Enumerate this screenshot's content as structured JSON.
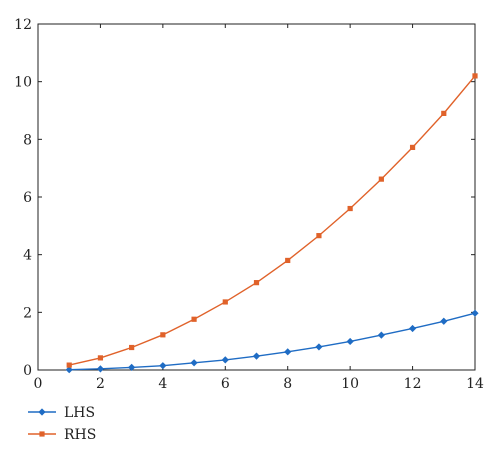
{
  "chart_data": {
    "type": "line",
    "title": "",
    "xlabel": "",
    "ylabel": "",
    "xlim": [
      0,
      14
    ],
    "ylim": [
      0,
      12
    ],
    "xticks": [
      "0",
      "2",
      "4",
      "6",
      "8",
      "10",
      "12",
      "14"
    ],
    "yticks": [
      "0",
      "2",
      "4",
      "6",
      "8",
      "10",
      "12"
    ],
    "grid": false,
    "legend_position": "bottom-left",
    "series": [
      {
        "name": "LHS",
        "color": "#1f6cc4",
        "marker": "diamond",
        "x": [
          1,
          2,
          3,
          4,
          5,
          6,
          7,
          8,
          9,
          10,
          11,
          12,
          13,
          14
        ],
        "y": [
          0.01,
          0.04,
          0.09,
          0.15,
          0.25,
          0.35,
          0.48,
          0.63,
          0.8,
          0.99,
          1.21,
          1.44,
          1.69,
          1.97
        ]
      },
      {
        "name": "RHS",
        "color": "#e0622a",
        "marker": "square",
        "x": [
          1,
          2,
          3,
          4,
          5,
          6,
          7,
          8,
          9,
          10,
          11,
          12,
          13,
          14
        ],
        "y": [
          0.17,
          0.42,
          0.78,
          1.22,
          1.76,
          2.36,
          3.03,
          3.8,
          4.66,
          5.6,
          6.62,
          7.72,
          8.9,
          10.2
        ]
      }
    ]
  }
}
